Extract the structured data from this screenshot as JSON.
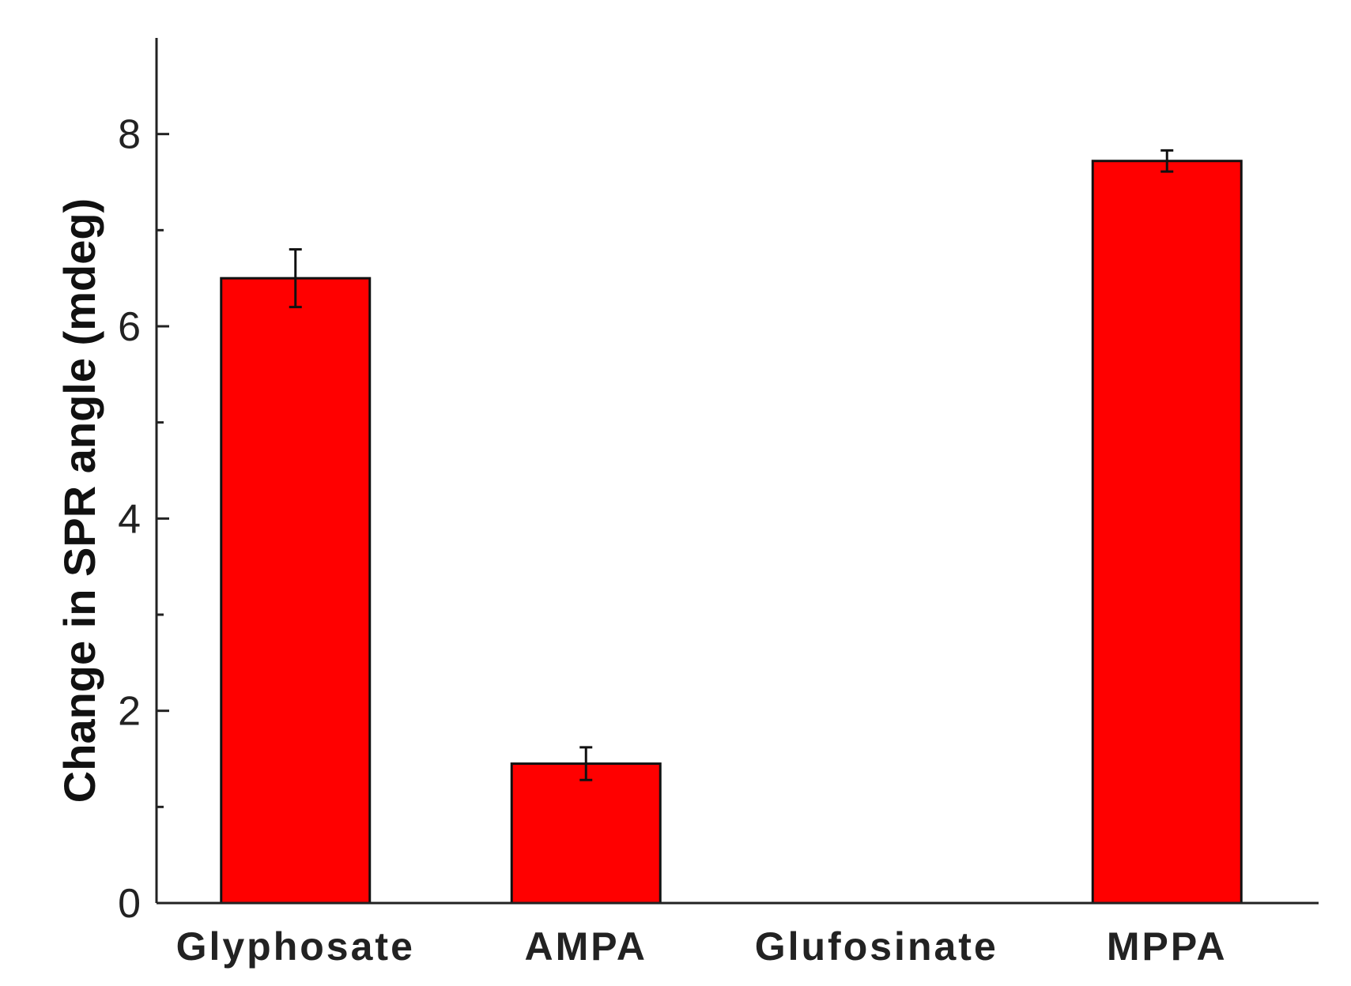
{
  "chart_data": {
    "type": "bar",
    "title": "",
    "xlabel": "",
    "ylabel": "Change in SPR angle (mdeg)",
    "categories": [
      "Glyphosate",
      "AMPA",
      "Glufosinate",
      "MPPA"
    ],
    "values": [
      6.5,
      1.45,
      0,
      7.72
    ],
    "errors": [
      0.3,
      0.17,
      0,
      0.11
    ],
    "ylim": [
      0,
      9
    ],
    "yticks": [
      0,
      2,
      4,
      6,
      8
    ],
    "grid": false,
    "bar_color": "#ff0000"
  }
}
